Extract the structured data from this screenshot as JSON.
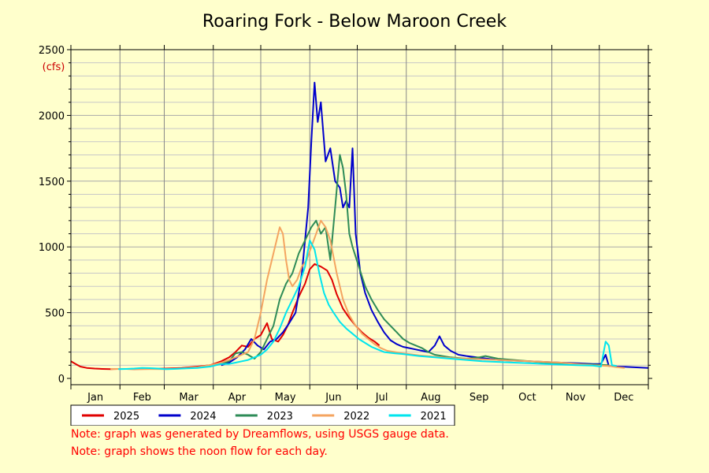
{
  "chart_data": {
    "type": "line",
    "title": "Roaring Fork - Below Maroon Creek",
    "ylabel": "(cfs)",
    "xlabel": "",
    "xlim": [
      0,
      365
    ],
    "ylim": [
      0,
      2500
    ],
    "y_ticks": [
      0,
      500,
      1000,
      1500,
      2000,
      2500
    ],
    "x_tick_labels": [
      "Jan",
      "Feb",
      "Mar",
      "Apr",
      "May",
      "Jun",
      "Jul",
      "Aug",
      "Sep",
      "Oct",
      "Nov",
      "Dec"
    ],
    "grid": true,
    "legend_position": "bottom",
    "series": [
      {
        "name": "2025",
        "color": "#e00000",
        "points": [
          [
            0,
            130
          ],
          [
            3,
            110
          ],
          [
            6,
            90
          ],
          [
            10,
            80
          ],
          [
            15,
            75
          ],
          [
            20,
            72
          ],
          [
            25,
            70
          ],
          [
            30,
            72
          ],
          [
            35,
            72
          ],
          [
            40,
            70
          ],
          [
            50,
            72
          ],
          [
            60,
            75
          ],
          [
            70,
            80
          ],
          [
            80,
            90
          ],
          [
            88,
            100
          ],
          [
            95,
            130
          ],
          [
            100,
            160
          ],
          [
            104,
            200
          ],
          [
            108,
            250
          ],
          [
            112,
            240
          ],
          [
            116,
            300
          ],
          [
            120,
            330
          ],
          [
            124,
            420
          ],
          [
            127,
            300
          ],
          [
            131,
            280
          ],
          [
            134,
            330
          ],
          [
            137,
            400
          ],
          [
            140,
            500
          ],
          [
            144,
            620
          ],
          [
            148,
            720
          ],
          [
            151,
            830
          ],
          [
            154,
            870
          ],
          [
            158,
            850
          ],
          [
            162,
            820
          ],
          [
            165,
            750
          ],
          [
            168,
            640
          ],
          [
            172,
            530
          ],
          [
            176,
            460
          ],
          [
            180,
            400
          ],
          [
            184,
            350
          ],
          [
            188,
            310
          ],
          [
            192,
            280
          ],
          [
            195,
            250
          ]
        ]
      },
      {
        "name": "2024",
        "color": "#0000cc",
        "points": [
          [
            95,
            100
          ],
          [
            100,
            120
          ],
          [
            105,
            160
          ],
          [
            110,
            220
          ],
          [
            114,
            300
          ],
          [
            118,
            250
          ],
          [
            122,
            220
          ],
          [
            126,
            280
          ],
          [
            130,
            300
          ],
          [
            134,
            350
          ],
          [
            138,
            420
          ],
          [
            142,
            500
          ],
          [
            146,
            800
          ],
          [
            150,
            1300
          ],
          [
            152,
            1800
          ],
          [
            154,
            2250
          ],
          [
            156,
            1950
          ],
          [
            158,
            2100
          ],
          [
            161,
            1650
          ],
          [
            164,
            1750
          ],
          [
            167,
            1500
          ],
          [
            170,
            1450
          ],
          [
            172,
            1300
          ],
          [
            174,
            1350
          ],
          [
            176,
            1300
          ],
          [
            178,
            1750
          ],
          [
            180,
            1100
          ],
          [
            183,
            800
          ],
          [
            186,
            650
          ],
          [
            190,
            520
          ],
          [
            194,
            430
          ],
          [
            198,
            350
          ],
          [
            202,
            290
          ],
          [
            206,
            260
          ],
          [
            210,
            240
          ],
          [
            214,
            230
          ],
          [
            218,
            220
          ],
          [
            222,
            210
          ],
          [
            226,
            200
          ],
          [
            230,
            250
          ],
          [
            233,
            320
          ],
          [
            236,
            250
          ],
          [
            240,
            210
          ],
          [
            245,
            180
          ],
          [
            250,
            170
          ],
          [
            260,
            155
          ],
          [
            270,
            140
          ],
          [
            280,
            135
          ],
          [
            290,
            130
          ],
          [
            300,
            125
          ],
          [
            310,
            120
          ],
          [
            320,
            115
          ],
          [
            330,
            110
          ],
          [
            335,
            110
          ],
          [
            338,
            180
          ],
          [
            340,
            95
          ],
          [
            345,
            90
          ],
          [
            350,
            88
          ],
          [
            355,
            85
          ],
          [
            360,
            82
          ],
          [
            365,
            80
          ]
        ]
      },
      {
        "name": "2023",
        "color": "#2e8b57",
        "points": [
          [
            95,
            110
          ],
          [
            100,
            130
          ],
          [
            104,
            190
          ],
          [
            108,
            200
          ],
          [
            112,
            180
          ],
          [
            116,
            150
          ],
          [
            120,
            200
          ],
          [
            124,
            300
          ],
          [
            128,
            400
          ],
          [
            132,
            600
          ],
          [
            136,
            720
          ],
          [
            140,
            800
          ],
          [
            144,
            950
          ],
          [
            148,
            1050
          ],
          [
            152,
            1150
          ],
          [
            155,
            1200
          ],
          [
            158,
            1100
          ],
          [
            161,
            1150
          ],
          [
            164,
            900
          ],
          [
            167,
            1300
          ],
          [
            170,
            1700
          ],
          [
            172,
            1600
          ],
          [
            174,
            1400
          ],
          [
            176,
            1100
          ],
          [
            178,
            1000
          ],
          [
            182,
            850
          ],
          [
            186,
            700
          ],
          [
            190,
            600
          ],
          [
            194,
            520
          ],
          [
            198,
            450
          ],
          [
            202,
            400
          ],
          [
            206,
            350
          ],
          [
            210,
            300
          ],
          [
            214,
            270
          ],
          [
            218,
            250
          ],
          [
            222,
            230
          ],
          [
            226,
            200
          ],
          [
            230,
            180
          ],
          [
            240,
            160
          ],
          [
            250,
            150
          ],
          [
            258,
            160
          ],
          [
            262,
            170
          ],
          [
            270,
            150
          ],
          [
            280,
            140
          ],
          [
            290,
            130
          ],
          [
            300,
            120
          ],
          [
            310,
            115
          ],
          [
            320,
            110
          ],
          [
            330,
            105
          ],
          [
            340,
            100
          ]
        ]
      },
      {
        "name": "2022",
        "color": "#f4a460",
        "points": [
          [
            25,
            72
          ],
          [
            30,
            72
          ],
          [
            60,
            70
          ],
          [
            70,
            75
          ],
          [
            80,
            85
          ],
          [
            88,
            100
          ],
          [
            95,
            120
          ],
          [
            100,
            140
          ],
          [
            104,
            160
          ],
          [
            108,
            180
          ],
          [
            112,
            200
          ],
          [
            116,
            300
          ],
          [
            120,
            500
          ],
          [
            124,
            750
          ],
          [
            128,
            950
          ],
          [
            132,
            1150
          ],
          [
            134,
            1100
          ],
          [
            136,
            900
          ],
          [
            138,
            750
          ],
          [
            140,
            700
          ],
          [
            143,
            750
          ],
          [
            146,
            850
          ],
          [
            149,
            900
          ],
          [
            152,
            1000
          ],
          [
            155,
            1100
          ],
          [
            158,
            1200
          ],
          [
            161,
            1150
          ],
          [
            164,
            1050
          ],
          [
            168,
            800
          ],
          [
            172,
            600
          ],
          [
            176,
            480
          ],
          [
            180,
            400
          ],
          [
            184,
            340
          ],
          [
            188,
            300
          ],
          [
            192,
            260
          ],
          [
            196,
            230
          ],
          [
            200,
            210
          ],
          [
            205,
            200
          ],
          [
            210,
            190
          ],
          [
            220,
            175
          ],
          [
            230,
            165
          ],
          [
            240,
            155
          ],
          [
            250,
            150
          ],
          [
            260,
            145
          ],
          [
            270,
            140
          ],
          [
            280,
            135
          ],
          [
            290,
            130
          ],
          [
            300,
            125
          ],
          [
            310,
            120
          ],
          [
            320,
            110
          ],
          [
            330,
            100
          ],
          [
            340,
            95
          ],
          [
            345,
            85
          ],
          [
            350,
            80
          ]
        ]
      },
      {
        "name": "2021",
        "color": "#00e5ee",
        "points": [
          [
            30,
            70
          ],
          [
            35,
            72
          ],
          [
            40,
            75
          ],
          [
            45,
            80
          ],
          [
            50,
            78
          ],
          [
            55,
            75
          ],
          [
            58,
            72
          ],
          [
            60,
            70
          ],
          [
            65,
            72
          ],
          [
            70,
            75
          ],
          [
            80,
            80
          ],
          [
            88,
            90
          ],
          [
            95,
            110
          ],
          [
            100,
            110
          ],
          [
            104,
            120
          ],
          [
            108,
            130
          ],
          [
            112,
            140
          ],
          [
            116,
            160
          ],
          [
            120,
            180
          ],
          [
            124,
            220
          ],
          [
            128,
            280
          ],
          [
            132,
            380
          ],
          [
            136,
            500
          ],
          [
            140,
            600
          ],
          [
            144,
            700
          ],
          [
            148,
            850
          ],
          [
            151,
            1050
          ],
          [
            154,
            980
          ],
          [
            157,
            800
          ],
          [
            160,
            650
          ],
          [
            163,
            560
          ],
          [
            166,
            500
          ],
          [
            170,
            430
          ],
          [
            174,
            380
          ],
          [
            178,
            340
          ],
          [
            182,
            300
          ],
          [
            186,
            270
          ],
          [
            190,
            240
          ],
          [
            194,
            220
          ],
          [
            198,
            200
          ],
          [
            205,
            190
          ],
          [
            210,
            185
          ],
          [
            220,
            170
          ],
          [
            230,
            160
          ],
          [
            240,
            150
          ],
          [
            250,
            140
          ],
          [
            260,
            130
          ],
          [
            270,
            125
          ],
          [
            280,
            120
          ],
          [
            290,
            115
          ],
          [
            300,
            110
          ],
          [
            310,
            105
          ],
          [
            320,
            100
          ],
          [
            330,
            98
          ],
          [
            335,
            90
          ],
          [
            338,
            280
          ],
          [
            340,
            250
          ],
          [
            342,
            100
          ],
          [
            345,
            95
          ]
        ]
      }
    ]
  },
  "notes": [
    "Note: graph was generated by Dreamflows, using USGS gauge data.",
    "Note: graph shows the noon flow for each day."
  ]
}
